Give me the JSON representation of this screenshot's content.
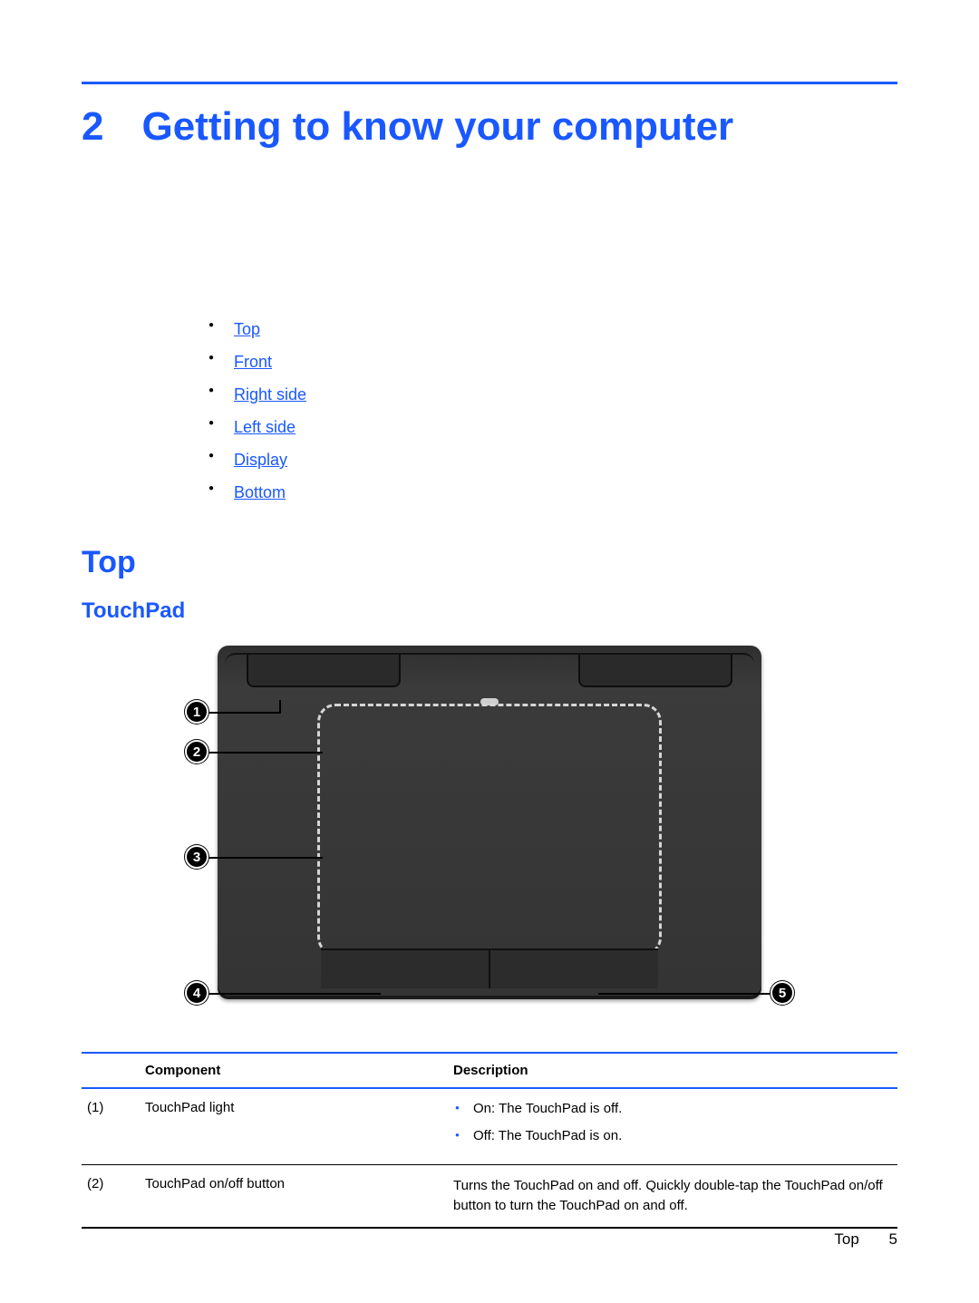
{
  "colors": {
    "accent": "#1a58ff",
    "text": "#000000",
    "page_bg": "#ffffff",
    "diagram_chassis": "#343434",
    "diagram_dash": "#d6d6d6"
  },
  "typography": {
    "family": "Arial",
    "chapter_fontsize_pt": 33,
    "h2_fontsize_pt": 25,
    "h3_fontsize_pt": 18,
    "body_fontsize_pt": 11
  },
  "chapter": {
    "number": "2",
    "title": "Getting to know your computer"
  },
  "toc": {
    "items": [
      {
        "label": "Top"
      },
      {
        "label": "Front"
      },
      {
        "label": "Right side"
      },
      {
        "label": "Left side"
      },
      {
        "label": "Display"
      },
      {
        "label": "Bottom"
      }
    ]
  },
  "section": {
    "h2": "Top",
    "h3": "TouchPad"
  },
  "diagram": {
    "type": "infographic",
    "callouts": [
      "1",
      "2",
      "3",
      "4",
      "5"
    ],
    "callout_bg": "#000000",
    "callout_fg": "#ffffff"
  },
  "table": {
    "headers": {
      "component": "Component",
      "description": "Description"
    },
    "rows": [
      {
        "num": "(1)",
        "component": "TouchPad light",
        "desc_type": "list",
        "desc_items": [
          "On: The TouchPad is off.",
          "Off: The TouchPad is on."
        ]
      },
      {
        "num": "(2)",
        "component": "TouchPad on/off button",
        "desc_type": "text",
        "desc_text": "Turns the TouchPad on and off. Quickly double-tap the TouchPad on/off button to turn the TouchPad on and off."
      }
    ]
  },
  "footer": {
    "section_label": "Top",
    "page_number": "5"
  }
}
